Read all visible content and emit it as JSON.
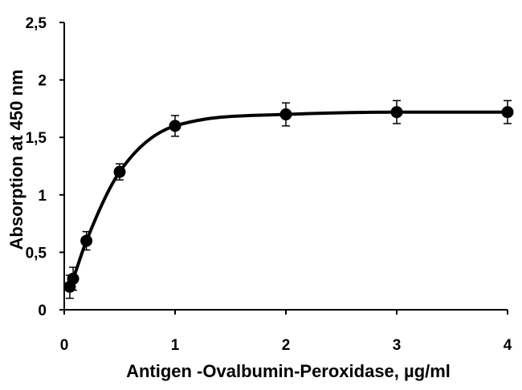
{
  "chart_data": {
    "type": "scatter",
    "title": "",
    "xlabel": "Antigen -Ovalbumin-Peroxidase, µg/ml",
    "ylabel": "Absorption at 450 nm",
    "xlim": [
      0,
      4
    ],
    "ylim": [
      0,
      2.5
    ],
    "x_ticks": [
      "0",
      "1",
      "2",
      "3",
      "4"
    ],
    "y_ticks": [
      "0",
      "0,5",
      "1",
      "1,5",
      "2",
      "2,5"
    ],
    "grid": false,
    "legend": "none",
    "smooth_line": true,
    "series": [
      {
        "x": [
          0.05,
          0.08,
          0.2,
          0.5,
          1.0,
          2.0,
          3.0,
          4.0
        ],
        "y": [
          0.2,
          0.27,
          0.6,
          1.2,
          1.6,
          1.7,
          1.72,
          1.72
        ],
        "error": [
          0.1,
          0.1,
          0.08,
          0.07,
          0.09,
          0.1,
          0.1,
          0.1
        ]
      }
    ]
  }
}
